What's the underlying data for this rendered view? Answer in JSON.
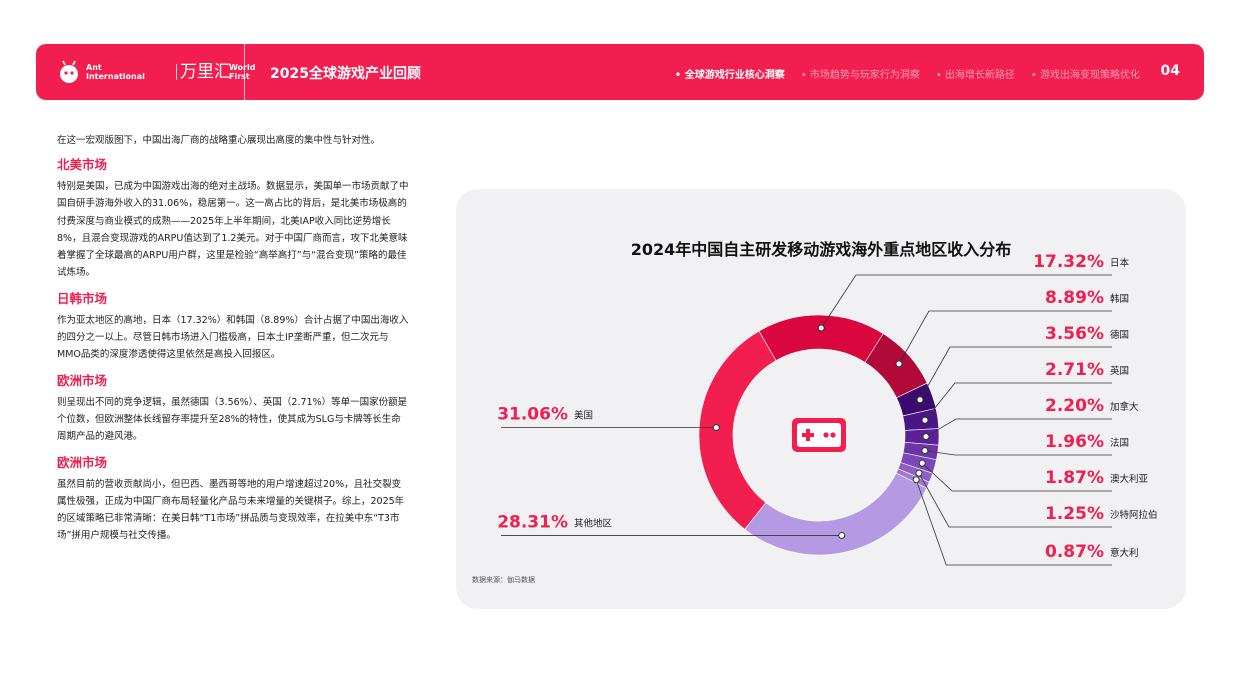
{
  "header": {
    "brand_en_1": "Ant",
    "brand_en_2": "International",
    "brand_cn": "万里汇",
    "brand_world_1": "World",
    "brand_world_2": "First",
    "report_title": "2025全球游戏产业回顾",
    "nav": [
      "• 全球游戏行业核心洞察",
      "• 市场趋势与玩家行为洞察",
      "• 出海增长新路径",
      "• 游戏出海变现策略优化"
    ],
    "page_number": "04",
    "accent_color": "#f21e4f"
  },
  "left": {
    "intro": "在这一宏观版图下，中国出海厂商的战略重心展现出高度的集中性与针对性。",
    "sections": [
      {
        "title": "北美市场",
        "body": "特别是美国，已成为中国游戏出海的绝对主战场。数据显示，美国单一市场贡献了中国自研手游海外收入的31.06%，稳居第一。这一高占比的背后，是北美市场极高的付费深度与商业模式的成熟——2025年上半年期间，北美IAP收入同比逆势增长8%，且混合变现游戏的ARPU值达到了1.2美元。对于中国厂商而言，攻下北美意味着掌握了全球最高的ARPU用户群，这里是检验“高举高打”与“混合变现”策略的最佳试炼场。"
      },
      {
        "title": "日韩市场",
        "body": "作为亚太地区的高地，日本（17.32%）和韩国（8.89%）合计占据了中国出海收入的四分之一以上。尽管日韩市场进入门槛极高，日本土IP垄断严重，但二次元与MMO品类的深度渗透使得这里依然是高投入回报区。"
      },
      {
        "title": "欧洲市场",
        "body": "则呈现出不同的竞争逻辑，虽然德国（3.56%）、英国（2.71%）等单一国家份额是个位数，但欧洲整体长线留存率提升至28%的特性，使其成为SLG与卡牌等长生命周期产品的避风港。"
      },
      {
        "title": "欧洲市场",
        "body": "虽然目前的营收贡献尚小，但巴西、墨西哥等地的用户增速超过20%，且社交裂变属性极强，正成为中国厂商布局轻量化产品与未来增量的关键棋子。综上，2025年的区域策略已非常清晰：在美日韩“T1市场”拼品质与变现效率，在拉美中东“T3市场”拼用户规模与社交传播。"
      }
    ]
  },
  "chart_data": {
    "type": "pie",
    "donut": true,
    "title": "2024年中国自主研发移动游戏海外重点地区收入分布",
    "source": "数据来源：伽马数据",
    "center_icon": "gamepad-icon",
    "slices": [
      {
        "label": "美国",
        "value": 31.06,
        "display": "31.06%",
        "color": "#f21e4f"
      },
      {
        "label": "日本",
        "value": 17.32,
        "display": "17.32%",
        "color": "#d9063f"
      },
      {
        "label": "韩国",
        "value": 8.89,
        "display": "8.89%",
        "color": "#b0093a"
      },
      {
        "label": "德国",
        "value": 3.56,
        "display": "3.56%",
        "color": "#3a0a6e"
      },
      {
        "label": "英国",
        "value": 2.71,
        "display": "2.71%",
        "color": "#4a1585"
      },
      {
        "label": "加拿大",
        "value": 2.2,
        "display": "2.20%",
        "color": "#5a2296"
      },
      {
        "label": "法国",
        "value": 1.96,
        "display": "1.96%",
        "color": "#6b35a8"
      },
      {
        "label": "澳大利亚",
        "value": 1.87,
        "display": "1.87%",
        "color": "#7a48b8"
      },
      {
        "label": "沙特阿拉伯",
        "value": 1.25,
        "display": "1.25%",
        "color": "#8d60c6"
      },
      {
        "label": "意大利",
        "value": 0.87,
        "display": "0.87%",
        "color": "#9f78d2"
      },
      {
        "label": "其他地区",
        "value": 28.31,
        "display": "28.31%",
        "color": "#b39ae3"
      }
    ]
  }
}
